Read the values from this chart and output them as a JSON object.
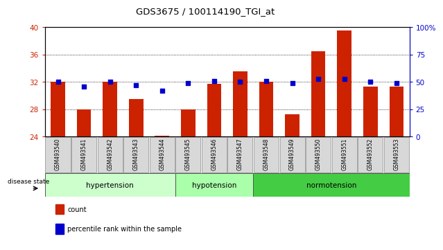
{
  "title": "GDS3675 / 100114190_TGI_at",
  "samples": [
    "GSM493540",
    "GSM493541",
    "GSM493542",
    "GSM493543",
    "GSM493544",
    "GSM493545",
    "GSM493546",
    "GSM493547",
    "GSM493548",
    "GSM493549",
    "GSM493550",
    "GSM493551",
    "GSM493552",
    "GSM493553"
  ],
  "count_values": [
    32.0,
    28.0,
    32.0,
    29.5,
    24.1,
    28.0,
    31.7,
    33.5,
    32.0,
    27.3,
    36.5,
    39.5,
    31.3,
    31.3
  ],
  "percentile_values": [
    50,
    46,
    50,
    47,
    42,
    49,
    51,
    50,
    51,
    49,
    53,
    53,
    50,
    49
  ],
  "groups": [
    {
      "label": "hypertension",
      "start": 0,
      "end": 5,
      "color": "#ccffcc"
    },
    {
      "label": "hypotension",
      "start": 5,
      "end": 8,
      "color": "#aaffaa"
    },
    {
      "label": "normotension",
      "start": 8,
      "end": 14,
      "color": "#44cc44"
    }
  ],
  "ylim_left": [
    24,
    40
  ],
  "ylim_right": [
    0,
    100
  ],
  "yticks_left": [
    24,
    28,
    32,
    36,
    40
  ],
  "yticks_right": [
    0,
    25,
    50,
    75,
    100
  ],
  "ytick_labels_right": [
    "0",
    "25",
    "50",
    "75",
    "100%"
  ],
  "bar_color": "#cc2200",
  "dot_color": "#0000cc",
  "grid_color": "#000000",
  "xlabel_color": "#cc2200",
  "ylabel_right_color": "#0000cc",
  "label_count": "count",
  "label_percentile": "percentile rank within the sample",
  "disease_state_label": "disease state"
}
